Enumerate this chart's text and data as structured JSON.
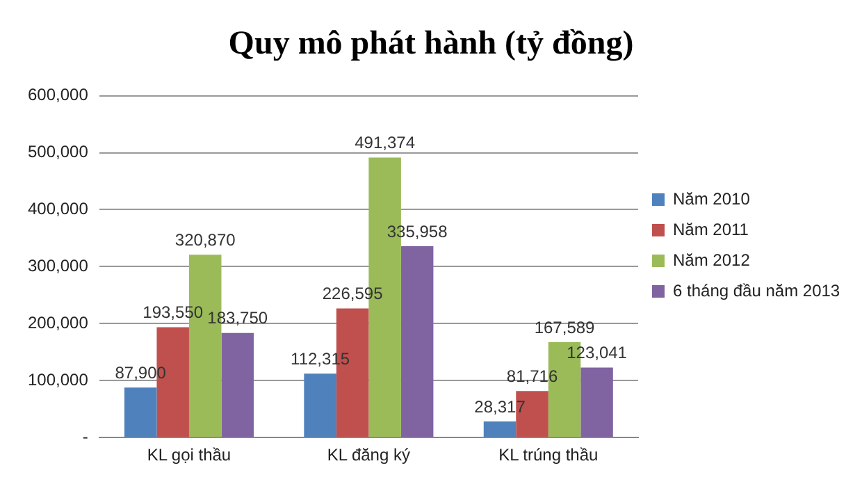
{
  "chart_data": {
    "type": "bar",
    "title": "Quy mô phát hành (tỷ đồng)",
    "categories": [
      "KL gọi thầu",
      "KL đăng ký",
      "KL trúng thầu"
    ],
    "series": [
      {
        "name": "Năm 2010",
        "color": "#4f81bd",
        "values": [
          87900,
          112315,
          28317
        ],
        "value_labels": [
          "87,900",
          "112,315",
          "28,317"
        ]
      },
      {
        "name": "Năm 2011",
        "color": "#c0504d",
        "values": [
          193550,
          226595,
          81716
        ],
        "value_labels": [
          "193,550",
          "226,595",
          "81,716"
        ]
      },
      {
        "name": "Năm 2012",
        "color": "#9bbb59",
        "values": [
          320870,
          491374,
          167589
        ],
        "value_labels": [
          "320,870",
          "491,374",
          "167,589"
        ]
      },
      {
        "name": "6 tháng đầu năm 2013",
        "color": "#8064a2",
        "values": [
          183750,
          335958,
          123041
        ],
        "value_labels": [
          "183,750",
          "335,958",
          "123,041"
        ]
      }
    ],
    "ylim": [
      0,
      600000
    ],
    "yticks": [
      {
        "value": 0,
        "label": "-"
      },
      {
        "value": 100000,
        "label": "100,000"
      },
      {
        "value": 200000,
        "label": "200,000"
      },
      {
        "value": 300000,
        "label": "300,000"
      },
      {
        "value": 400000,
        "label": "400,000"
      },
      {
        "value": 500000,
        "label": "500,000"
      },
      {
        "value": 600000,
        "label": "600,000"
      }
    ],
    "grid": "y",
    "legend": "right"
  }
}
